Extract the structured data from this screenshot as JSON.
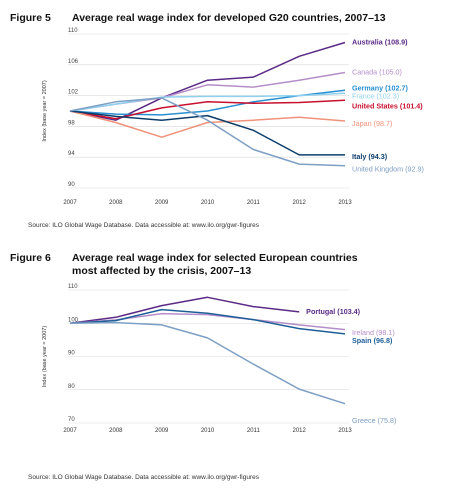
{
  "charts": [
    {
      "figure": "Figure 5",
      "title": "Average real wage index for developed G20 countries, 2007–13",
      "source": "Source: ILO Global Wage Database. Data accessible at: www.ilo.org/gwr-figures",
      "chart_data": {
        "type": "line",
        "ylabel": "Index (base year = 2007)",
        "x": [
          2007,
          2008,
          2009,
          2010,
          2011,
          2012,
          2013
        ],
        "ylim": [
          90,
          110
        ],
        "yticks": [
          90,
          94,
          98,
          102,
          106,
          110
        ],
        "grid": true,
        "series": [
          {
            "name": "Australia",
            "label": "Australia (108.9)",
            "color": "#5b2a86",
            "bold": true,
            "values": [
              100,
              98.8,
              101.7,
              104.0,
              104.4,
              107.1,
              108.9
            ]
          },
          {
            "name": "Canada",
            "label": "Canada (105.0)",
            "color": "#b58ec9",
            "bold": false,
            "values": [
              100,
              100.9,
              101.7,
              103.4,
              103.1,
              104.0,
              105.0
            ]
          },
          {
            "name": "Germany",
            "label": "Germany (102.7)",
            "color": "#2a8fd0",
            "bold": true,
            "values": [
              100,
              99.6,
              99.5,
              100.0,
              101.2,
              102.0,
              102.7
            ]
          },
          {
            "name": "France",
            "label": "France (102.3)",
            "color": "#8fd0ee",
            "bold": false,
            "values": [
              100,
              100.9,
              101.8,
              101.9,
              101.9,
              102.0,
              102.3
            ]
          },
          {
            "name": "United States",
            "label": "United States (101.4)",
            "color": "#c8102e",
            "bold": true,
            "values": [
              100,
              99.0,
              100.4,
              101.2,
              101.0,
              101.1,
              101.4
            ]
          },
          {
            "name": "Japan",
            "label": "Japan (98.7)",
            "color": "#f0917a",
            "bold": false,
            "values": [
              100,
              98.5,
              96.6,
              98.5,
              98.8,
              99.2,
              98.7
            ]
          },
          {
            "name": "Italy",
            "label": "Italy (94.3)",
            "color": "#0b3d6b",
            "bold": true,
            "values": [
              100,
              99.3,
              98.8,
              99.4,
              97.5,
              94.3,
              94.3
            ]
          },
          {
            "name": "United Kingdom",
            "label": "United Kingdom (92.9)",
            "color": "#7d9fc4",
            "bold": false,
            "values": [
              100,
              101.2,
              101.7,
              98.8,
              95.0,
              93.1,
              92.9
            ]
          }
        ]
      }
    },
    {
      "figure": "Figure 6",
      "title": "Average real wage index for selected European countries",
      "title2": "most affected by the crisis, 2007–13",
      "source": "Source: ILO Global Wage Database. Data accessible at: www.ilo.org/gwr-figures",
      "chart_data": {
        "type": "line",
        "ylabel": "Index (base year = 2007)",
        "x": [
          2007,
          2008,
          2009,
          2010,
          2011,
          2012,
          2013
        ],
        "ylim": [
          70,
          110
        ],
        "yticks": [
          70,
          80,
          90,
          100,
          110
        ],
        "grid": true,
        "series": [
          {
            "name": "Portugal",
            "label": "Portugal (103.4)",
            "color": "#5b2a86",
            "bold": true,
            "values": [
              100,
              101.8,
              105.3,
              107.8,
              105.0,
              103.4,
              null
            ]
          },
          {
            "name": "Ireland",
            "label": "Ireland (98.1)",
            "color": "#b58ec9",
            "bold": false,
            "values": [
              100,
              101.0,
              102.9,
              102.6,
              101.1,
              99.5,
              98.1
            ]
          },
          {
            "name": "Spain",
            "label": "Spain (96.8)",
            "color": "#1f5f99",
            "bold": true,
            "values": [
              100,
              100.8,
              104.1,
              103.0,
              101.1,
              98.4,
              96.8
            ]
          },
          {
            "name": "Greece",
            "label": "Greece (75.8)",
            "color": "#7d9fc4",
            "bold": false,
            "values": [
              100,
              100.2,
              99.5,
              95.6,
              87.7,
              80.2,
              75.8
            ]
          }
        ]
      }
    }
  ]
}
